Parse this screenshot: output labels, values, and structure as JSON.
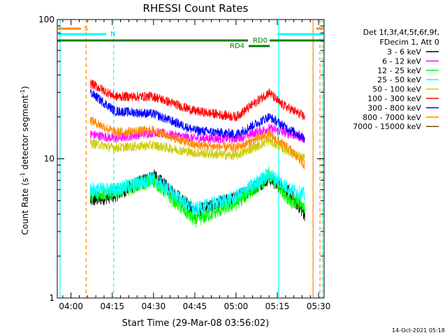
{
  "chart_data": {
    "type": "line",
    "title": "RHESSI Count Rates",
    "xlabel": "Start Time (29-Mar-08 03:56:02)",
    "ylabel_main": "Count Rate (s",
    "ylabel_sup1": "-1",
    "ylabel_mid": " detector segment",
    "ylabel_sup2": "-1",
    "ylabel_end": ")",
    "xlim_minutes": [
      -1.0,
      96.0
    ],
    "ylim": [
      1,
      100
    ],
    "yscale": "log",
    "x_ticks": [
      {
        "label": "04:00",
        "minutes": 4
      },
      {
        "label": "04:15",
        "minutes": 19
      },
      {
        "label": "04:30",
        "minutes": 34
      },
      {
        "label": "04:45",
        "minutes": 49
      },
      {
        "label": "05:00",
        "minutes": 64
      },
      {
        "label": "05:15",
        "minutes": 79
      },
      {
        "label": "05:30",
        "minutes": 94
      }
    ],
    "y_ticks": [
      {
        "label": "1",
        "value": 1
      },
      {
        "label": "10",
        "value": 10
      },
      {
        "label": "100",
        "value": 100
      }
    ],
    "legend_header": [
      "Det 1f,3f,4f,5f,6f,9f,",
      "FDecim 1, Att 0"
    ],
    "series": [
      {
        "name": "3 - 6 keV",
        "color": "#000000",
        "points": [
          [
            11,
            5.0
          ],
          [
            20,
            5.5
          ],
          [
            34,
            7.5
          ],
          [
            49,
            4.2
          ],
          [
            64,
            5.2
          ],
          [
            76,
            7.3
          ],
          [
            84,
            5.5
          ],
          [
            89,
            4.0
          ]
        ]
      },
      {
        "name": "6 - 12 keV",
        "color": "#ff00ff",
        "points": [
          [
            11,
            15.0
          ],
          [
            20,
            14.0
          ],
          [
            34,
            15.5
          ],
          [
            49,
            14.0
          ],
          [
            64,
            14.0
          ],
          [
            76,
            16.5
          ],
          [
            84,
            15.0
          ],
          [
            89,
            14.0
          ]
        ]
      },
      {
        "name": "12 - 25 keV",
        "color": "#00ff00",
        "points": [
          [
            11,
            5.5
          ],
          [
            20,
            5.8
          ],
          [
            34,
            7.0
          ],
          [
            49,
            3.6
          ],
          [
            64,
            4.8
          ],
          [
            76,
            7.5
          ],
          [
            84,
            5.0
          ],
          [
            89,
            4.5
          ]
        ]
      },
      {
        "name": "25 - 50 keV",
        "color": "#00ffff",
        "points": [
          [
            11,
            6.0
          ],
          [
            20,
            6.0
          ],
          [
            34,
            7.2
          ],
          [
            49,
            4.3
          ],
          [
            64,
            5.3
          ],
          [
            76,
            7.8
          ],
          [
            84,
            6.0
          ],
          [
            89,
            5.5
          ]
        ]
      },
      {
        "name": "50 - 100 keV",
        "color": "#cccc00",
        "points": [
          [
            11,
            13.0
          ],
          [
            20,
            12.0
          ],
          [
            34,
            12.5
          ],
          [
            49,
            11.0
          ],
          [
            64,
            10.5
          ],
          [
            76,
            13.5
          ],
          [
            84,
            11.0
          ],
          [
            89,
            10.0
          ]
        ]
      },
      {
        "name": "100 - 300 keV",
        "color": "#ff0000",
        "points": [
          [
            11,
            35.0
          ],
          [
            20,
            28.0
          ],
          [
            34,
            28.0
          ],
          [
            49,
            22.0
          ],
          [
            64,
            20.0
          ],
          [
            76,
            30.0
          ],
          [
            80,
            25.0
          ],
          [
            89,
            20.0
          ]
        ]
      },
      {
        "name": "300 - 800 keV",
        "color": "#0000ff",
        "points": [
          [
            11,
            30.0
          ],
          [
            20,
            22.0
          ],
          [
            34,
            21.0
          ],
          [
            49,
            16.0
          ],
          [
            64,
            15.0
          ],
          [
            76,
            20.0
          ],
          [
            84,
            16.0
          ],
          [
            89,
            14.0
          ]
        ]
      },
      {
        "name": "800 - 7000 keV",
        "color": "#ff8800",
        "points": [
          [
            11,
            19.0
          ],
          [
            20,
            15.5
          ],
          [
            34,
            16.0
          ],
          [
            49,
            12.5
          ],
          [
            64,
            12.0
          ],
          [
            76,
            15.0
          ],
          [
            84,
            11.5
          ],
          [
            89,
            9.0
          ]
        ]
      },
      {
        "name": "7000 - 15000 keV",
        "color": "#884400",
        "points": []
      }
    ],
    "attenuator_labels": [
      "S",
      "N",
      "RD0",
      "RD4"
    ],
    "vertical_lines": [
      {
        "minutes": 0.0,
        "color": "#00ffff",
        "style": "solid"
      },
      {
        "minutes": 9.5,
        "color": "#ff8800",
        "style": "dashed"
      },
      {
        "minutes": 19.5,
        "color": "#00ffff",
        "style": "dashed"
      },
      {
        "minutes": 79.5,
        "color": "#00ffff",
        "style": "solid"
      },
      {
        "minutes": 92.0,
        "color": "#ff8800",
        "style": "solid"
      },
      {
        "minutes": 94.5,
        "color": "#ff8800",
        "style": "dashed"
      },
      {
        "minutes": 95.5,
        "color": "#00ffff",
        "style": "dashed"
      }
    ],
    "footer_date": "14-Oct-2021 05:18"
  }
}
